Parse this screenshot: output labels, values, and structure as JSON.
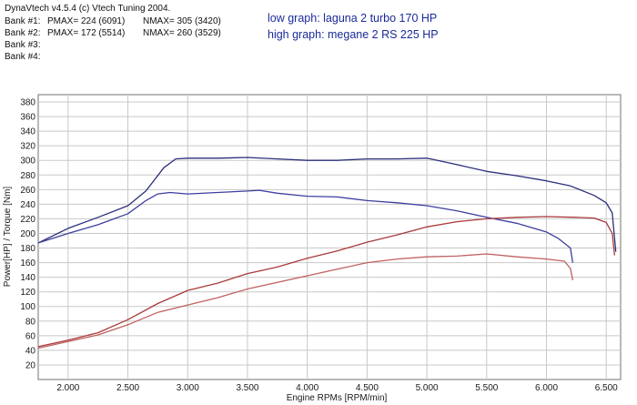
{
  "header": {
    "app_line": "DynaVtech v4.5.4 (c) Vtech Tuning 2004.",
    "bank1_label": "Bank #1:",
    "bank1_pmax": "PMAX= 224 (6091)",
    "bank1_nmax": "NMAX= 305 (3420)",
    "bank2_label": "Bank #2:",
    "bank2_pmax": "PMAX= 172 (5514)",
    "bank2_nmax": "NMAX= 260 (3529)",
    "bank3_label": "Bank #3:",
    "bank4_label": "Bank #4:"
  },
  "notes": {
    "low_graph": "low graph: laguna 2 turbo 170 HP",
    "high_graph": "high graph: megane 2 RS 225 HP"
  },
  "chart_data": {
    "type": "line",
    "xlabel": "Engine RPMs [RPM/min]",
    "ylabel": "Power[HP] / Torque [Nm]",
    "xlim": [
      1750,
      6620
    ],
    "ylim": [
      0,
      390
    ],
    "x_ticks": [
      2000,
      2500,
      3000,
      3500,
      4000,
      4500,
      5000,
      5500,
      6000,
      6500
    ],
    "x_tick_labels": [
      "2.000",
      "2.500",
      "3.000",
      "3.500",
      "4.000",
      "4.500",
      "5.000",
      "5.500",
      "6.000",
      "6.500"
    ],
    "y_ticks": [
      20,
      40,
      60,
      80,
      100,
      120,
      140,
      160,
      180,
      200,
      220,
      240,
      260,
      280,
      300,
      320,
      340,
      360,
      380
    ],
    "grid": true,
    "series": [
      {
        "color": "#2a2f7a",
        "points": [
          [
            1750,
            187
          ],
          [
            2000,
            207
          ],
          [
            2250,
            222
          ],
          [
            2500,
            238
          ],
          [
            2650,
            258
          ],
          [
            2800,
            290
          ],
          [
            2900,
            302
          ],
          [
            3000,
            303
          ],
          [
            3250,
            303
          ],
          [
            3500,
            304
          ],
          [
            3750,
            302
          ],
          [
            4000,
            300
          ],
          [
            4250,
            300
          ],
          [
            4500,
            302
          ],
          [
            4750,
            302
          ],
          [
            5000,
            303
          ],
          [
            5200,
            296
          ],
          [
            5500,
            285
          ],
          [
            5750,
            279
          ],
          [
            6000,
            272
          ],
          [
            6200,
            265
          ],
          [
            6400,
            252
          ],
          [
            6500,
            242
          ],
          [
            6550,
            228
          ],
          [
            6580,
            175
          ]
        ]
      },
      {
        "color": "#3c3f9e",
        "points": [
          [
            1750,
            187
          ],
          [
            2000,
            200
          ],
          [
            2250,
            212
          ],
          [
            2500,
            227
          ],
          [
            2650,
            245
          ],
          [
            2750,
            254
          ],
          [
            2850,
            256
          ],
          [
            3000,
            254
          ],
          [
            3250,
            256
          ],
          [
            3500,
            258
          ],
          [
            3600,
            259
          ],
          [
            3750,
            255
          ],
          [
            4000,
            251
          ],
          [
            4250,
            250
          ],
          [
            4500,
            245
          ],
          [
            4750,
            242
          ],
          [
            5000,
            238
          ],
          [
            5250,
            231
          ],
          [
            5500,
            222
          ],
          [
            5750,
            214
          ],
          [
            6000,
            202
          ],
          [
            6100,
            193
          ],
          [
            6200,
            180
          ],
          [
            6220,
            160
          ]
        ]
      },
      {
        "color": "#a83a3a",
        "points": [
          [
            1750,
            45
          ],
          [
            2000,
            54
          ],
          [
            2250,
            64
          ],
          [
            2500,
            82
          ],
          [
            2750,
            104
          ],
          [
            3000,
            122
          ],
          [
            3250,
            132
          ],
          [
            3500,
            145
          ],
          [
            3750,
            154
          ],
          [
            4000,
            166
          ],
          [
            4250,
            176
          ],
          [
            4500,
            188
          ],
          [
            4750,
            198
          ],
          [
            5000,
            209
          ],
          [
            5250,
            216
          ],
          [
            5500,
            220
          ],
          [
            5750,
            222
          ],
          [
            6000,
            223
          ],
          [
            6250,
            222
          ],
          [
            6400,
            221
          ],
          [
            6500,
            215
          ],
          [
            6550,
            200
          ],
          [
            6570,
            170
          ]
        ]
      },
      {
        "color": "#c06060",
        "points": [
          [
            1750,
            43
          ],
          [
            2000,
            52
          ],
          [
            2250,
            61
          ],
          [
            2500,
            75
          ],
          [
            2750,
            92
          ],
          [
            3000,
            102
          ],
          [
            3250,
            112
          ],
          [
            3500,
            124
          ],
          [
            3750,
            133
          ],
          [
            4000,
            142
          ],
          [
            4250,
            151
          ],
          [
            4500,
            160
          ],
          [
            4750,
            165
          ],
          [
            5000,
            168
          ],
          [
            5250,
            169
          ],
          [
            5500,
            172
          ],
          [
            5750,
            168
          ],
          [
            6000,
            165
          ],
          [
            6150,
            162
          ],
          [
            6200,
            152
          ],
          [
            6220,
            136
          ]
        ]
      }
    ]
  }
}
